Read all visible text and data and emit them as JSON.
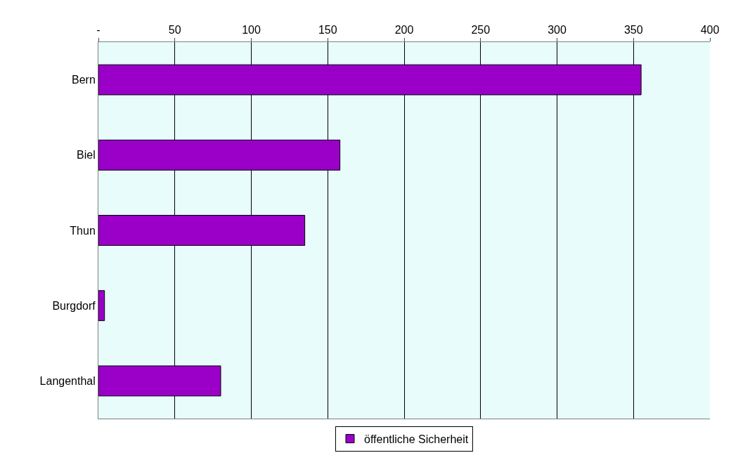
{
  "chart_data": {
    "type": "bar",
    "orientation": "horizontal",
    "categories": [
      "Bern",
      "Biel",
      "Thun",
      "Burgdorf",
      "Langenthal"
    ],
    "series": [
      {
        "name": "öffentliche Sicherheit",
        "color": "#9a00c8",
        "values": [
          355,
          158,
          135,
          4,
          80
        ]
      }
    ],
    "xlim": [
      0,
      400
    ],
    "xticks": [
      {
        "value": 0,
        "label": "-"
      },
      50,
      100,
      150,
      200,
      250,
      300,
      350,
      400
    ],
    "grid": "x",
    "legend": "bottom"
  }
}
